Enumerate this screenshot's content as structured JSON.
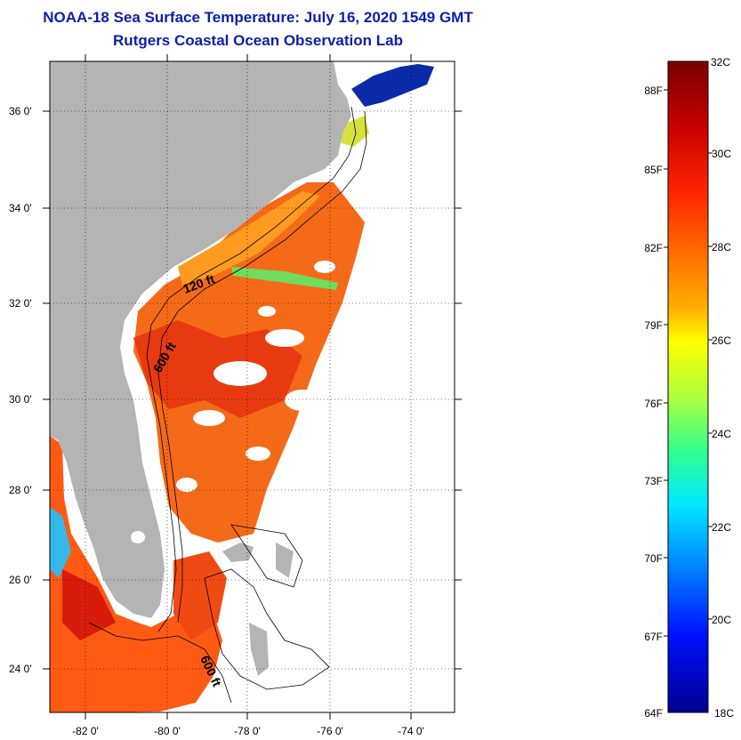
{
  "title": {
    "line1": "NOAA-18 Sea Surface Temperature:  July 16, 2020 1549 GMT",
    "line2": "Rutgers Coastal Ocean Observation Lab"
  },
  "map": {
    "lon_ticks": [
      "-82 0'",
      "-80 0'",
      "-78 0'",
      "-76 0'",
      "-74 0'"
    ],
    "lat_ticks": [
      "36 0'",
      "34 0'",
      "32 0'",
      "30 0'",
      "28 0'",
      "26 0'",
      "24 0'"
    ],
    "contour_labels": [
      "120 ft",
      "600 ft",
      "600 ft"
    ],
    "land_color": "#b4b4b4",
    "cloud_color": "#ffffff"
  },
  "colorbar": {
    "fahrenheit_labels": [
      "88F",
      "85F",
      "82F",
      "79F",
      "76F",
      "73F",
      "70F",
      "67F",
      "64F"
    ],
    "celsius_labels": [
      "32C",
      "30C",
      "28C",
      "26C",
      "24C",
      "22C",
      "20C",
      "18C"
    ],
    "colors": [
      "#7a0000",
      "#d40000",
      "#ff3000",
      "#ff8000",
      "#ffd000",
      "#ffff00",
      "#a0ff40",
      "#00ffb0",
      "#00c8ff",
      "#0060ff",
      "#0000d0",
      "#000080"
    ]
  }
}
